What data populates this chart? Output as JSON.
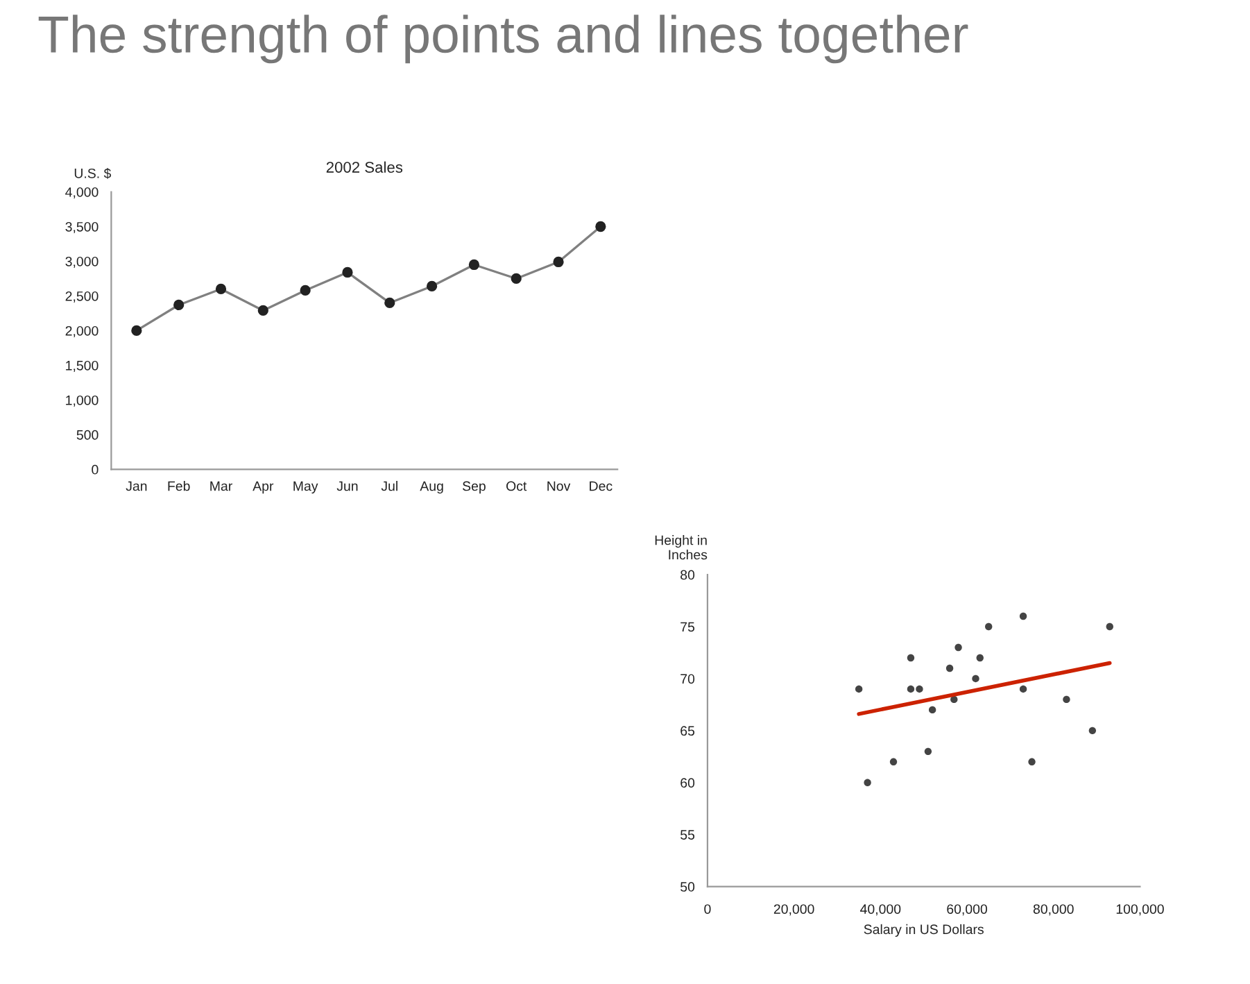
{
  "chart_data": [
    {
      "type": "line",
      "title": "2002 Sales",
      "ylabel": "U.S. $",
      "annotations": [
        "The strength of points and lines together"
      ],
      "categories": [
        "Jan",
        "Feb",
        "Mar",
        "Apr",
        "May",
        "Jun",
        "Jul",
        "Aug",
        "Sep",
        "Oct",
        "Nov",
        "Dec"
      ],
      "series": [
        {
          "color": "#808080",
          "values": [
            2000,
            2370,
            2600,
            2290,
            2580,
            2840,
            2400,
            2640,
            2950,
            2750,
            2990,
            3500
          ]
        }
      ],
      "ylim": [
        0,
        4000
      ],
      "yticks": [
        0,
        500,
        {
          "value": 1000,
          "label": "1,000"
        },
        {
          "value": 1500,
          "label": "1,500"
        },
        {
          "value": 2000,
          "label": "2,000"
        },
        {
          "value": 2500,
          "label": "2,500"
        },
        {
          "value": 3000,
          "label": "3,000"
        },
        {
          "value": 3500,
          "label": "3,500"
        },
        {
          "value": 4000,
          "label": "4,000"
        }
      ],
      "marker": "circle",
      "line_style": "solid",
      "grid": false,
      "legend": false
    },
    {
      "type": "scatter",
      "ylabel": "Height in\nInches",
      "xlabel": "Salary in US Dollars",
      "series": [
        {
          "type": "scatter",
          "color": "#444444",
          "x": [
            35000,
            37000,
            43000,
            47000,
            47000,
            49000,
            51000,
            52000,
            56000,
            57000,
            58000,
            62000,
            63000,
            65000,
            73000,
            73000,
            75000,
            83000,
            89000,
            93000
          ],
          "values": [
            69,
            60,
            62,
            72,
            69,
            69,
            63,
            67,
            71,
            68,
            73,
            70,
            72,
            75,
            76,
            69,
            62,
            68,
            65,
            75
          ]
        },
        {
          "type": "line",
          "color": "#cc2200",
          "x": [
            35000,
            93000
          ],
          "values": [
            66.6,
            71.5
          ]
        }
      ],
      "xlim": [
        0,
        100000
      ],
      "ylim": [
        50,
        80
      ],
      "xticks": [
        0,
        {
          "value": 20000,
          "label": "20,000"
        },
        {
          "value": 40000,
          "label": "40,000"
        },
        {
          "value": 60000,
          "label": "60,000"
        },
        {
          "value": 80000,
          "label": "80,000"
        },
        {
          "value": 100000,
          "label": "100,000"
        }
      ],
      "yticks": [
        50,
        55,
        60,
        65,
        70,
        75,
        80
      ],
      "grid": false,
      "legend": false
    }
  ]
}
